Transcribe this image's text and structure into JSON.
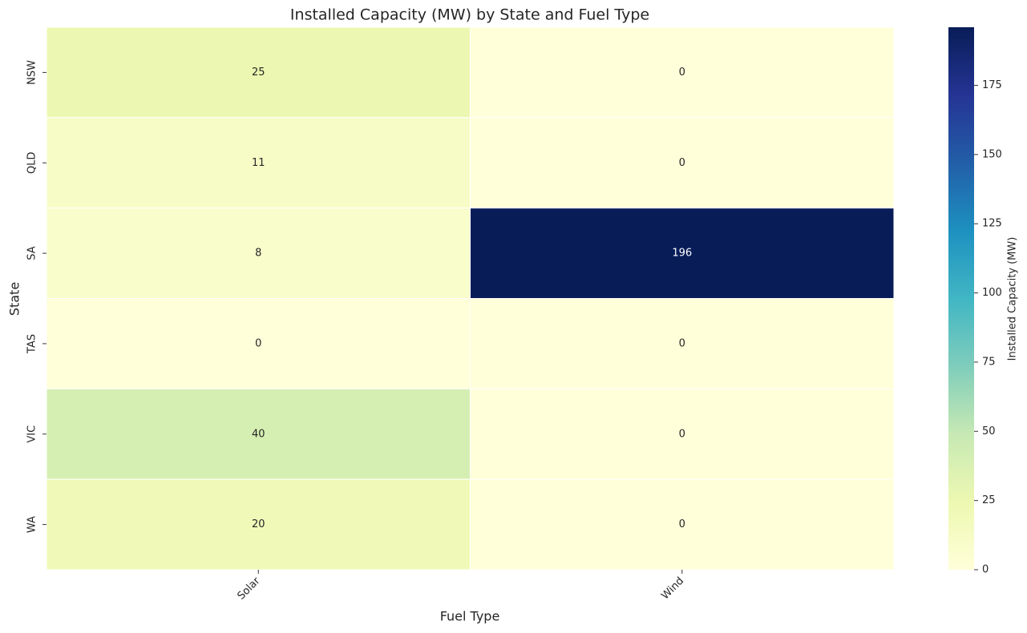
{
  "chart_data": {
    "type": "heatmap",
    "title": "Installed Capacity (MW) by State and Fuel Type",
    "x_label": "Fuel Type",
    "y_label": "State",
    "x_categories": [
      "Solar",
      "Wind"
    ],
    "y_categories": [
      "NSW",
      "QLD",
      "SA",
      "TAS",
      "VIC",
      "WA"
    ],
    "values": [
      [
        25,
        0
      ],
      [
        11,
        0
      ],
      [
        8,
        196
      ],
      [
        0,
        0
      ],
      [
        40,
        0
      ],
      [
        20,
        0
      ]
    ],
    "colorbar_label": "Installed Capacity (MW)",
    "zlim": [
      0,
      196
    ],
    "zticks": [
      0,
      25,
      50,
      75,
      100,
      125,
      150,
      175
    ],
    "colormap": [
      "#ffffd9",
      "#edf8b1",
      "#c7e9b4",
      "#7fcdbb",
      "#41b6c4",
      "#1d91c0",
      "#225ea8",
      "#253494",
      "#081d58"
    ]
  }
}
